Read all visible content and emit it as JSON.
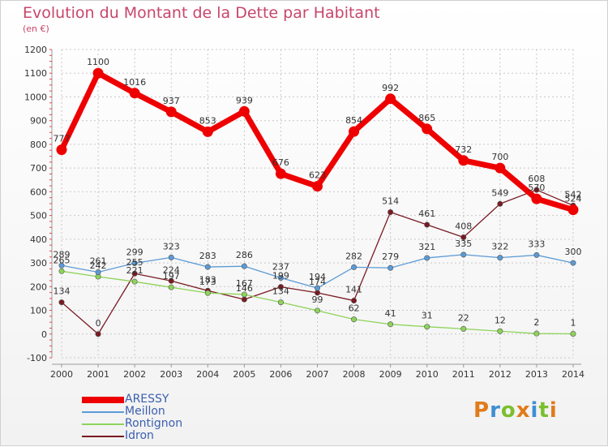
{
  "title": "Evolution du Montant de la Dette par Habitant",
  "subtitle": "(en €)",
  "brand": "Proxiti",
  "colors": {
    "title": "#c8466a",
    "grid": "#c8c8c8",
    "axis": "#999999",
    "tick_minor": "#e8434a"
  },
  "chart_data": {
    "type": "line",
    "x": [
      "2000",
      "2001",
      "2002",
      "2003",
      "2004",
      "2005",
      "2006",
      "2007",
      "2008",
      "2009",
      "2010",
      "2011",
      "2012",
      "2013",
      "2014"
    ],
    "ylim": [
      -100,
      1200
    ],
    "yticks": [
      "-100",
      "0",
      "100",
      "200",
      "300",
      "400",
      "500",
      "600",
      "700",
      "800",
      "900",
      "1000",
      "1100",
      "1200"
    ],
    "grid": true,
    "legend_position": "bottom-left",
    "series": [
      {
        "name": "ARESSY",
        "color": "#ee0000",
        "values": [
          777,
          1100,
          1016,
          937,
          853,
          939,
          676,
          623,
          854,
          992,
          865,
          732,
          700,
          570,
          524
        ],
        "labels": [
          "777",
          "1100",
          "1016",
          "937",
          "853",
          "939",
          "676",
          "623",
          "854",
          "992",
          "865",
          "732",
          "700",
          "570",
          "524"
        ]
      },
      {
        "name": "Meillon",
        "color": "#5b9bd5",
        "values": [
          289,
          261,
          299,
          323,
          283,
          286,
          237,
          194,
          282,
          279,
          321,
          335,
          322,
          333,
          300
        ],
        "labels": [
          "289",
          "261",
          "299",
          "323",
          "283",
          "286",
          "237",
          "194",
          "282",
          "279",
          "321",
          "335",
          "322",
          "333",
          "300"
        ]
      },
      {
        "name": "Rontignon",
        "color": "#8dd35a",
        "values": [
          265,
          242,
          221,
          197,
          173,
          167,
          134,
          99,
          62,
          41,
          31,
          22,
          12,
          2,
          1
        ],
        "labels": [
          "265",
          "242",
          "221",
          "197",
          "173",
          "167",
          "134",
          "99",
          "62",
          "41",
          "31",
          "22",
          "12",
          "2",
          "1"
        ]
      },
      {
        "name": "Idron",
        "color": "#7a1a22",
        "values": [
          134,
          0,
          255,
          224,
          183,
          146,
          199,
          174,
          141,
          514,
          461,
          408,
          549,
          608,
          542
        ],
        "labels": [
          "134",
          "0",
          "255",
          "224",
          "183",
          "146",
          "199",
          "174",
          "141",
          "514",
          "461",
          "408",
          "549",
          "608",
          "542"
        ]
      }
    ]
  }
}
